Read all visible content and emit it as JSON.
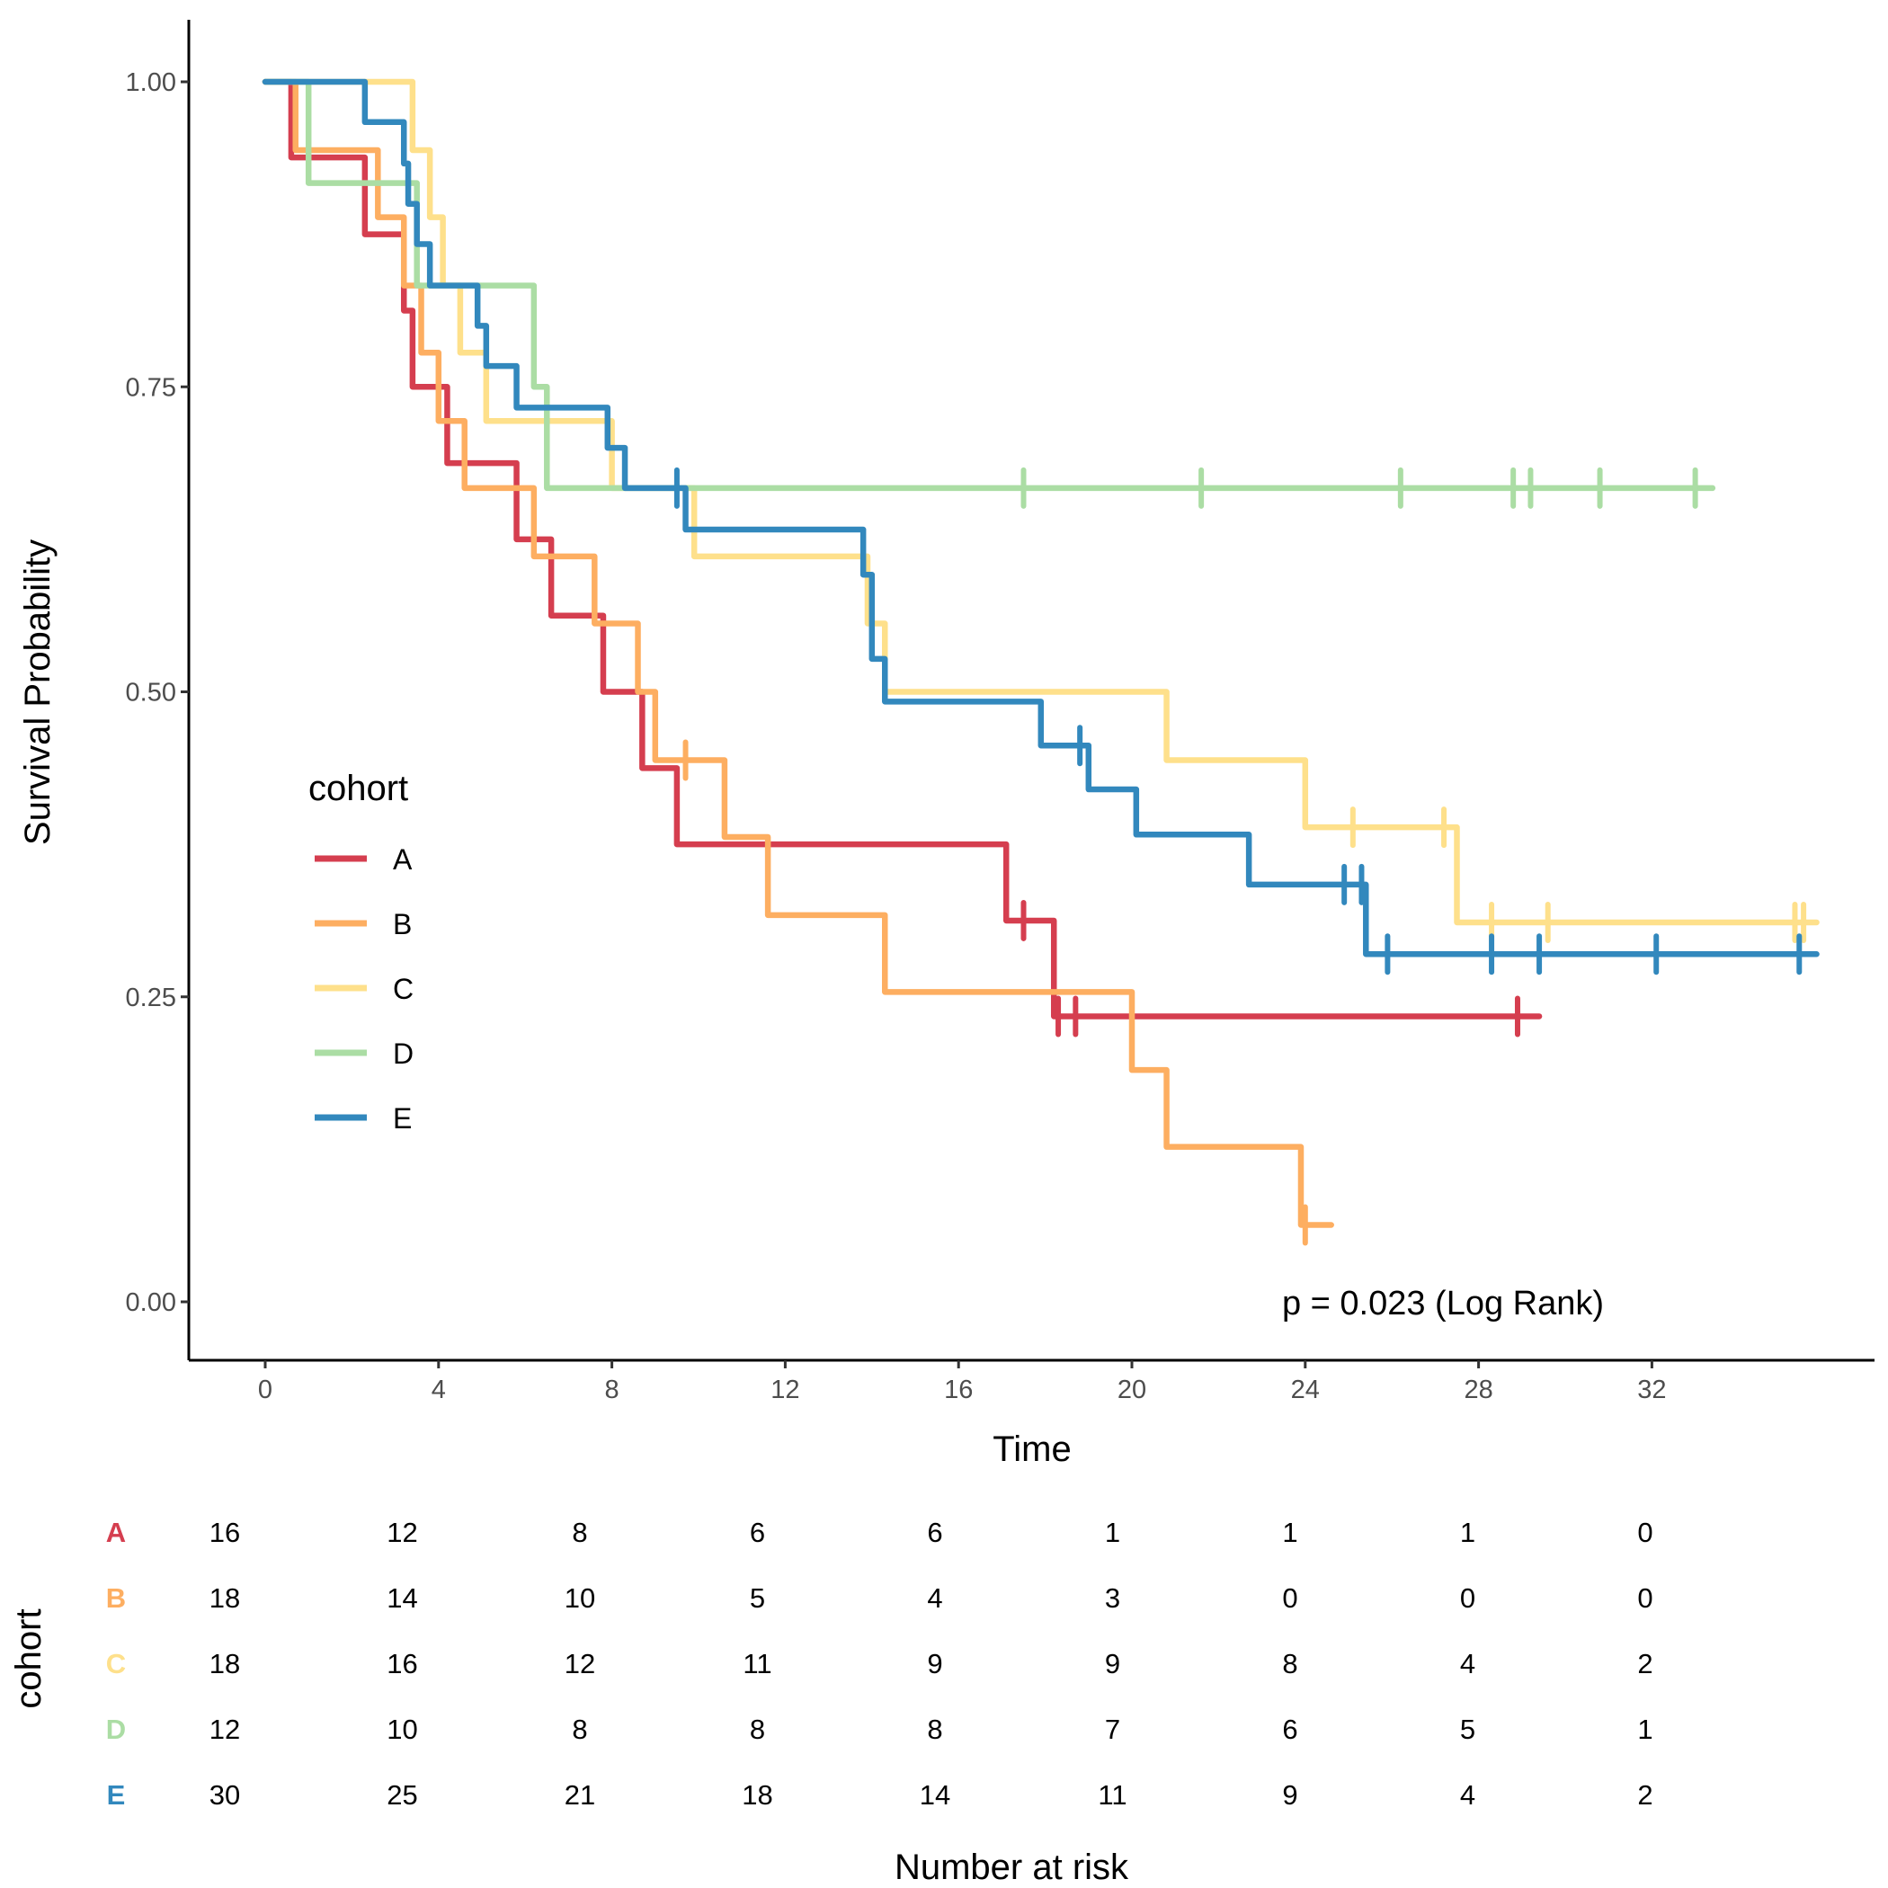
{
  "chart_data": {
    "type": "line",
    "subtype": "kaplan-meier-step",
    "title": "",
    "xlabel": "Time",
    "ylabel": "Survival Probability",
    "xlim": [
      -1.7,
      37.3
    ],
    "ylim": [
      -0.05,
      1.05
    ],
    "x_ticks": [
      0,
      4,
      8,
      12,
      16,
      20,
      24,
      28,
      32
    ],
    "x_tick_labels": [
      "0",
      "4",
      "8",
      "12",
      "16",
      "20",
      "24",
      "28",
      "32"
    ],
    "y_ticks": [
      0,
      0.25,
      0.5,
      0.75,
      1.0
    ],
    "y_tick_labels": [
      "0.00",
      "0.25",
      "0.50",
      "0.75",
      "1.00"
    ],
    "grid": false,
    "legend": {
      "title": "cohort",
      "placement": "left-middle inside",
      "entries": [
        "A",
        "B",
        "C",
        "D",
        "E"
      ]
    },
    "annotation": "p = 0.023 (Log Rank)",
    "series": [
      {
        "name": "A",
        "color": "#D53E4F",
        "steps": [
          [
            0,
            1.0
          ],
          [
            0.6,
            0.938
          ],
          [
            2.3,
            0.875
          ],
          [
            3.2,
            0.8125
          ],
          [
            3.4,
            0.75
          ],
          [
            4.2,
            0.6875
          ],
          [
            5.8,
            0.625
          ],
          [
            6.6,
            0.5625
          ],
          [
            7.8,
            0.5
          ],
          [
            8.7,
            0.4375
          ],
          [
            9.5,
            0.375
          ],
          [
            17.1,
            0.3125
          ],
          [
            18.2,
            0.234
          ]
        ],
        "censors": [
          17.5,
          18.3,
          18.7,
          28.9
        ],
        "end_time": 29.4
      },
      {
        "name": "B",
        "color": "#FDAE61",
        "steps": [
          [
            0,
            1.0
          ],
          [
            0.7,
            0.944
          ],
          [
            2.6,
            0.889
          ],
          [
            3.2,
            0.833
          ],
          [
            3.6,
            0.778
          ],
          [
            4.0,
            0.722
          ],
          [
            4.6,
            0.667
          ],
          [
            6.2,
            0.611
          ],
          [
            7.6,
            0.556
          ],
          [
            8.6,
            0.5
          ],
          [
            9.0,
            0.444
          ],
          [
            10.6,
            0.381
          ],
          [
            11.6,
            0.317
          ],
          [
            14.3,
            0.254
          ],
          [
            20.0,
            0.19
          ],
          [
            20.8,
            0.127
          ],
          [
            23.9,
            0.063
          ]
        ],
        "censors": [
          9.7,
          24.0
        ],
        "end_time": 24.6
      },
      {
        "name": "C",
        "color": "#FEE08B",
        "steps": [
          [
            0,
            1.0
          ],
          [
            3.4,
            0.944
          ],
          [
            3.8,
            0.889
          ],
          [
            4.1,
            0.833
          ],
          [
            4.5,
            0.778
          ],
          [
            5.1,
            0.722
          ],
          [
            8.0,
            0.667
          ],
          [
            9.9,
            0.611
          ],
          [
            13.9,
            0.556
          ],
          [
            14.3,
            0.5
          ],
          [
            20.8,
            0.444
          ],
          [
            24.0,
            0.389
          ],
          [
            27.5,
            0.311
          ]
        ],
        "censors": [
          25.1,
          27.2,
          28.3,
          29.6,
          35.3,
          35.5
        ],
        "end_time": 35.8
      },
      {
        "name": "D",
        "color": "#ABDDA4",
        "steps": [
          [
            0,
            1.0
          ],
          [
            1.0,
            0.917
          ],
          [
            3.5,
            0.833
          ],
          [
            6.2,
            0.75
          ],
          [
            6.5,
            0.667
          ]
        ],
        "censors": [
          17.5,
          21.6,
          26.2,
          28.8,
          29.2,
          30.8,
          33.0
        ],
        "end_time": 33.4
      },
      {
        "name": "E",
        "color": "#3288BD",
        "steps": [
          [
            0,
            1.0
          ],
          [
            2.3,
            0.967
          ],
          [
            3.2,
            0.933
          ],
          [
            3.3,
            0.9
          ],
          [
            3.5,
            0.867
          ],
          [
            3.8,
            0.833
          ],
          [
            4.9,
            0.8
          ],
          [
            5.1,
            0.767
          ],
          [
            5.8,
            0.733
          ],
          [
            7.9,
            0.7
          ],
          [
            8.3,
            0.667
          ],
          [
            9.7,
            0.633
          ],
          [
            13.8,
            0.596
          ],
          [
            14.0,
            0.527
          ],
          [
            14.3,
            0.492
          ],
          [
            17.9,
            0.456
          ],
          [
            19.0,
            0.42
          ],
          [
            20.1,
            0.383
          ],
          [
            22.7,
            0.342
          ],
          [
            25.4,
            0.285
          ]
        ],
        "censors": [
          9.5,
          18.8,
          24.9,
          25.3,
          25.9,
          28.3,
          29.4,
          32.1,
          35.4
        ],
        "end_time": 35.8
      }
    ],
    "risk_table": {
      "title": "Number at risk",
      "ylabel": "cohort",
      "times": [
        0,
        4,
        8,
        12,
        16,
        20,
        24,
        28,
        32
      ],
      "rows": [
        {
          "group": "A",
          "color": "#D53E4F",
          "values": [
            "16",
            "12",
            "8",
            "6",
            "6",
            "1",
            "1",
            "1",
            "0"
          ]
        },
        {
          "group": "B",
          "color": "#FDAE61",
          "values": [
            "18",
            "14",
            "10",
            "5",
            "4",
            "3",
            "0",
            "0",
            "0"
          ]
        },
        {
          "group": "C",
          "color": "#FEE08B",
          "values": [
            "18",
            "16",
            "12",
            "11",
            "9",
            "9",
            "8",
            "4",
            "2"
          ]
        },
        {
          "group": "D",
          "color": "#ABDDA4",
          "values": [
            "12",
            "10",
            "8",
            "8",
            "8",
            "7",
            "6",
            "5",
            "1"
          ]
        },
        {
          "group": "E",
          "color": "#3288BD",
          "values": [
            "30",
            "25",
            "21",
            "18",
            "14",
            "11",
            "9",
            "4",
            "2"
          ]
        }
      ]
    }
  }
}
